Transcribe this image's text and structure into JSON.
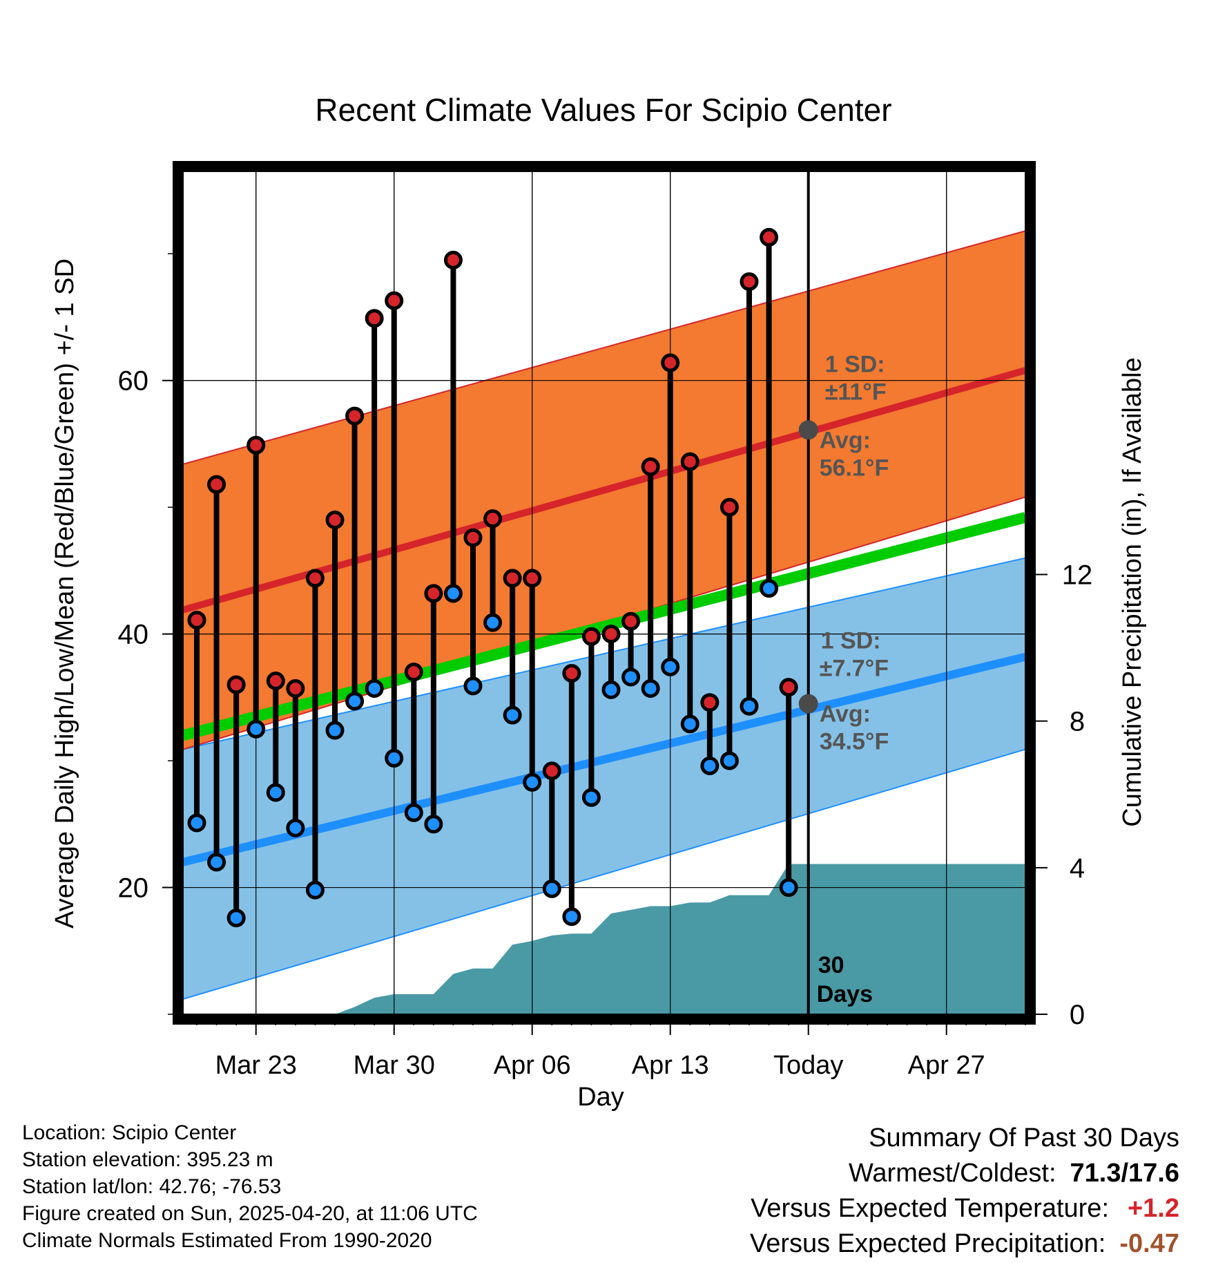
{
  "chart_data": {
    "type": "line",
    "title": "Recent Climate Values For Scipio Center",
    "xlabel": "Day",
    "ylabel": "Average Daily High/Low/Mean (Red/Blue/Green) +/- 1 SD",
    "y2label": "Cumulative Precipitation (in), If Available",
    "x_ticks": [
      "Mar 23",
      "Mar 30",
      "Apr 06",
      "Apr 13",
      "Today",
      "Apr 27"
    ],
    "x_dates": [
      "2025-03-20",
      "2025-03-21",
      "2025-03-22",
      "2025-03-23",
      "2025-03-24",
      "2025-03-25",
      "2025-03-26",
      "2025-03-27",
      "2025-03-28",
      "2025-03-29",
      "2025-03-30",
      "2025-03-31",
      "2025-04-01",
      "2025-04-02",
      "2025-04-03",
      "2025-04-04",
      "2025-04-05",
      "2025-04-06",
      "2025-04-07",
      "2025-04-08",
      "2025-04-09",
      "2025-04-10",
      "2025-04-11",
      "2025-04-12",
      "2025-04-13",
      "2025-04-14",
      "2025-04-15",
      "2025-04-16",
      "2025-04-17",
      "2025-04-18",
      "2025-04-19",
      "2025-04-20",
      "2025-04-21",
      "2025-04-22",
      "2025-04-23",
      "2025-04-24",
      "2025-04-25",
      "2025-04-26",
      "2025-04-27",
      "2025-04-28",
      "2025-04-29",
      "2025-04-30",
      "2025-05-01"
    ],
    "xlim": [
      "2025-03-19.3",
      "2025-05-01"
    ],
    "ylim": [
      10,
      76.5
    ],
    "yticks": [
      20,
      40,
      60
    ],
    "y2lim": [
      0,
      23
    ],
    "y2ticks": [
      0,
      4,
      8,
      12
    ],
    "grid": true,
    "today": "2025-04-20",
    "observed": {
      "dates": [
        "2025-03-20",
        "2025-03-21",
        "2025-03-22",
        "2025-03-23",
        "2025-03-24",
        "2025-03-25",
        "2025-03-26",
        "2025-03-27",
        "2025-03-28",
        "2025-03-29",
        "2025-03-30",
        "2025-03-31",
        "2025-04-01",
        "2025-04-02",
        "2025-04-03",
        "2025-04-04",
        "2025-04-05",
        "2025-04-06",
        "2025-04-07",
        "2025-04-08",
        "2025-04-09",
        "2025-04-10",
        "2025-04-11",
        "2025-04-12",
        "2025-04-13",
        "2025-04-14",
        "2025-04-15",
        "2025-04-16",
        "2025-04-17",
        "2025-04-18",
        "2025-04-19"
      ],
      "high": [
        41.1,
        51.8,
        36.0,
        54.9,
        36.3,
        35.7,
        44.4,
        49.0,
        57.2,
        64.9,
        66.3,
        37.0,
        43.2,
        69.5,
        47.6,
        49.1,
        44.4,
        44.4,
        29.2,
        36.9,
        39.8,
        40.0,
        41.0,
        53.2,
        61.4,
        53.6,
        34.6,
        50.0,
        67.8,
        71.3,
        35.8
      ],
      "low": [
        25.1,
        22.0,
        17.6,
        32.5,
        27.5,
        24.7,
        19.8,
        32.4,
        34.7,
        35.7,
        30.2,
        25.9,
        25.0,
        43.2,
        35.9,
        40.9,
        33.6,
        28.3,
        19.9,
        17.7,
        27.1,
        35.6,
        36.6,
        35.7,
        37.4,
        32.9,
        29.6,
        30.0,
        34.3,
        43.6,
        20.0
      ]
    },
    "normals": {
      "dates": [
        "2025-03-19.3",
        "2025-05-01"
      ],
      "avg_high": [
        41.9,
        60.8
      ],
      "avg_high_upper": [
        53.4,
        71.8
      ],
      "avg_high_lower": [
        30.9,
        50.8
      ],
      "avg_low": [
        22.0,
        38.2
      ],
      "avg_low_upper": [
        30.9,
        46.0
      ],
      "avg_low_lower": [
        11.2,
        30.9
      ],
      "avg_mean": [
        32.0,
        49.2
      ]
    },
    "precipitation": {
      "dates": [
        "2025-03-19.3",
        "2025-03-26",
        "2025-03-27",
        "2025-03-28",
        "2025-03-29",
        "2025-03-30",
        "2025-03-31",
        "2025-04-01",
        "2025-04-02",
        "2025-04-03",
        "2025-04-04",
        "2025-04-05",
        "2025-04-06",
        "2025-04-07",
        "2025-04-08",
        "2025-04-09",
        "2025-04-10",
        "2025-04-11",
        "2025-04-12",
        "2025-04-13",
        "2025-04-14",
        "2025-04-15",
        "2025-04-16",
        "2025-04-17",
        "2025-04-18",
        "2025-04-19",
        "2025-04-20",
        "2025-05-01"
      ],
      "cumulative": [
        0,
        0,
        0,
        0.2,
        0.45,
        0.55,
        0.55,
        0.55,
        1.1,
        1.25,
        1.25,
        1.9,
        2.0,
        2.15,
        2.2,
        2.2,
        2.75,
        2.85,
        2.95,
        2.95,
        3.05,
        3.05,
        3.25,
        3.25,
        3.25,
        4.1,
        4.1,
        4.1
      ]
    },
    "annotations": {
      "high_sd": "1 SD:",
      "high_sd_value": "±11°F",
      "high_avg": "Avg:",
      "high_avg_value": "56.1°F",
      "high_avg_marker": 56.1,
      "low_sd": "1 SD:",
      "low_sd_value": "±7.7°F",
      "low_avg": "Avg:",
      "low_avg_value": "34.5°F",
      "low_avg_marker": 34.5,
      "days_num": "30",
      "days_word": "Days"
    },
    "colors": {
      "high_band": "#f37a30",
      "high_line": "#d6242b",
      "low_band": "#85c1e7",
      "low_line": "#1e8fff",
      "mean_line": "#00cc00",
      "precip": "#4a9aa5",
      "high_marker": "#d6242b",
      "low_marker": "#1e8fff",
      "annotation": "#555555",
      "warm_text": "#d6242b",
      "precip_text": "#a0522d"
    }
  },
  "info": {
    "location": "Location: Scipio Center",
    "elevation": "Station elevation: 395.23 m",
    "latlon": "Station lat/lon: 42.76; -76.53",
    "created": "Figure created on Sun, 2025-04-20, at 11:06 UTC",
    "normals": "Climate Normals Estimated From 1990-2020"
  },
  "summary": {
    "heading": "Summary Of Past 30 Days",
    "warm_cold_label": "Warmest/Coldest:",
    "warm_cold_value": "71.3/17.6",
    "temp_label": "Versus Expected Temperature:",
    "temp_value": "+1.2",
    "precip_label": "Versus Expected Precipitation:",
    "precip_value": "-0.47"
  }
}
